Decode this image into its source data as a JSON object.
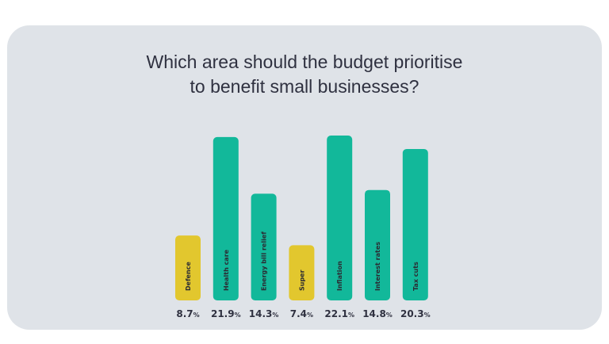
{
  "chart_data": {
    "type": "bar",
    "title_lines": [
      "Which area should the budget prioritise",
      "to benefit small businesses?"
    ],
    "categories": [
      "Defence",
      "Health care",
      "Energy bill relief",
      "Super",
      "Inflation",
      "Interest rates",
      "Tax cuts"
    ],
    "values": [
      8.7,
      21.9,
      14.3,
      7.4,
      22.1,
      14.8,
      20.3
    ],
    "value_labels": [
      "8.7",
      "21.9",
      "14.3",
      "7.4",
      "22.1",
      "14.8",
      "20.3"
    ],
    "unit": "%",
    "highlight": [
      "Defence",
      "Super"
    ],
    "colors": {
      "default": "#12b89a",
      "highlight": "#e2c72e"
    },
    "ylim": [
      0,
      22.1
    ],
    "grid": false,
    "legend": "none"
  }
}
